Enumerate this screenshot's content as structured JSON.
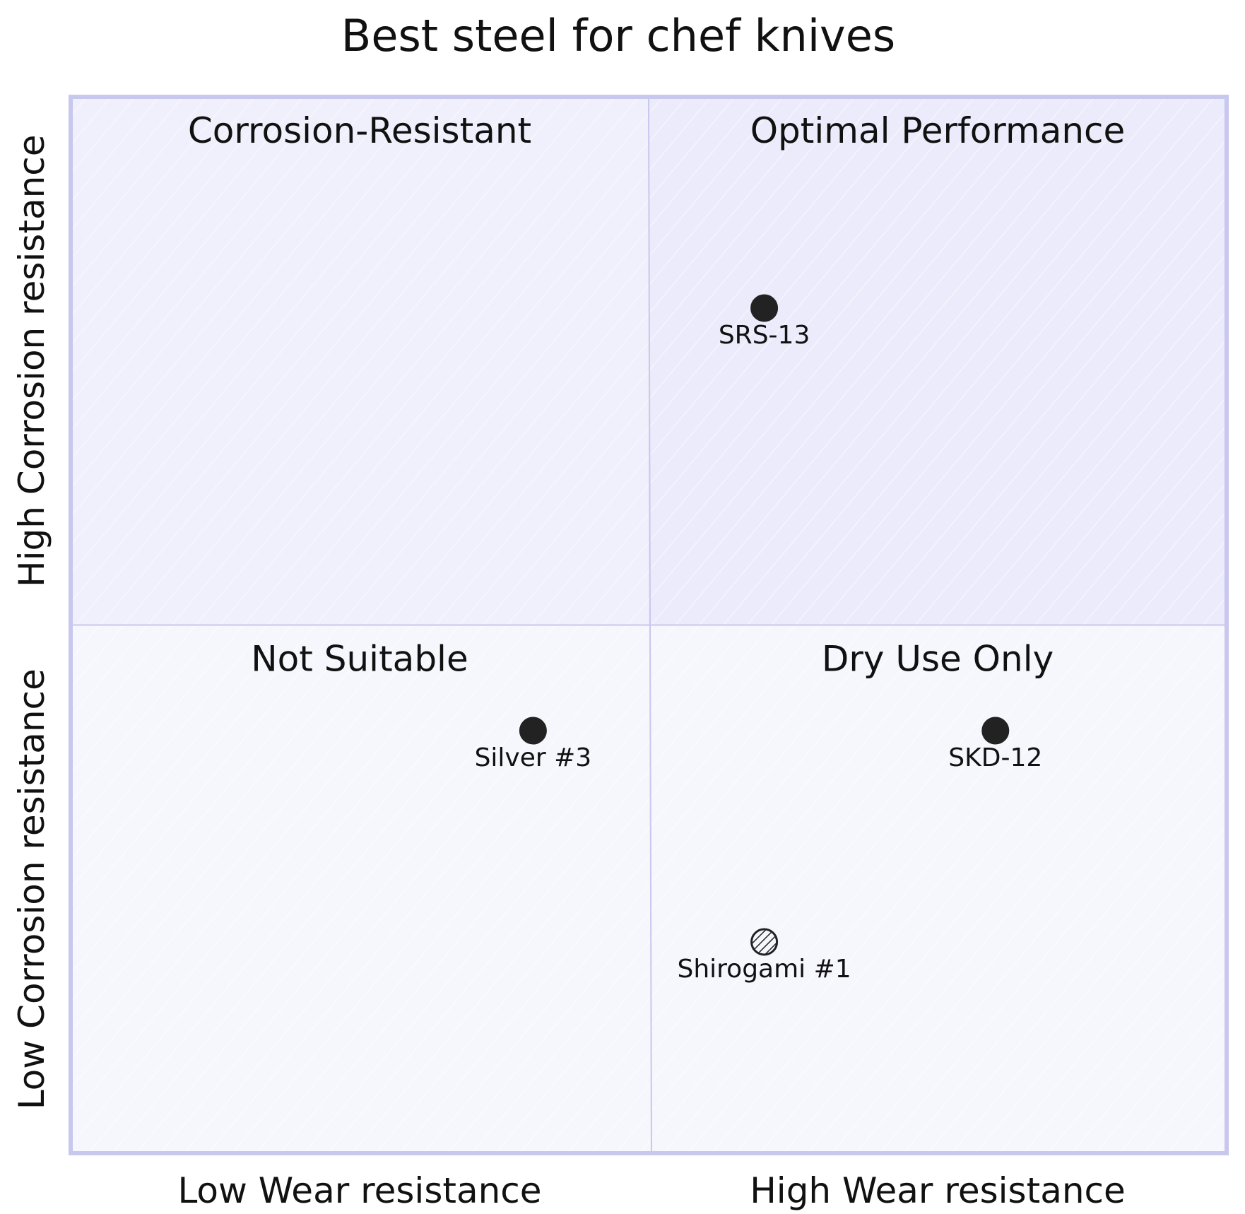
{
  "chart_data": {
    "type": "scatter",
    "subtype": "quadrant",
    "title": "Best steel for chef knives",
    "x_axis": {
      "low_label": "Low Wear resistance",
      "high_label": "High Wear resistance",
      "range": [
        0,
        1
      ]
    },
    "y_axis": {
      "low_label": "Low Corrosion resistance",
      "high_label": "High Corrosion resistance",
      "range": [
        0,
        1
      ]
    },
    "quadrants": {
      "top_left": "Corrosion-Resistant",
      "top_right": "Optimal Performance",
      "bottom_left": "Not Suitable",
      "bottom_right": "Dry Use Only"
    },
    "points": [
      {
        "label": "SRS-13",
        "x": 0.6,
        "y": 0.8
      },
      {
        "label": "Silver #3",
        "x": 0.4,
        "y": 0.4
      },
      {
        "label": "SKD-12",
        "x": 0.8,
        "y": 0.4
      },
      {
        "label": "Shirogami #1",
        "x": 0.6,
        "y": 0.2
      }
    ],
    "colors": {
      "quadrant_top_right": "#ecebfb",
      "quadrant_top_left": "#f0effc",
      "quadrant_bottom": "#f6f6fd",
      "border": "#c8c7ee",
      "divider": "#c8c7ee",
      "point": "#222222",
      "text": "#111111"
    },
    "grid": false
  }
}
